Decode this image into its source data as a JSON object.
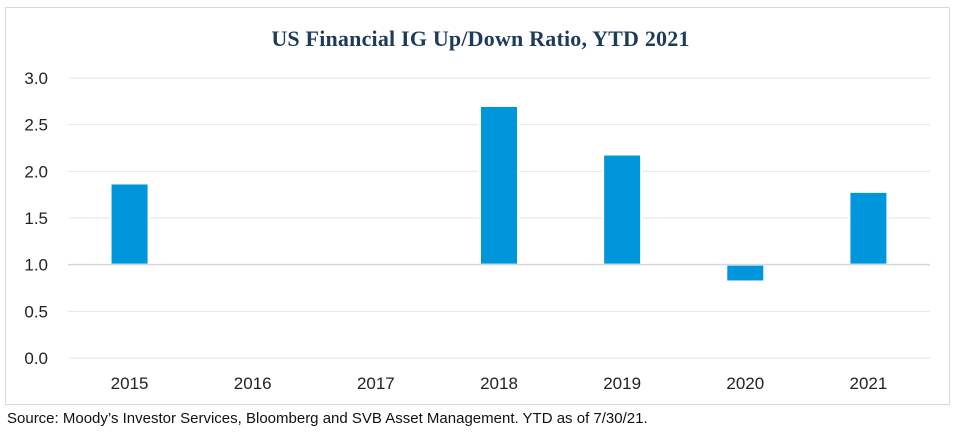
{
  "chart_data": {
    "type": "bar",
    "title": "US Financial IG Up/Down Ratio, YTD 2021",
    "categories": [
      "2015",
      "2016",
      "2017",
      "2018",
      "2019",
      "2020",
      "2021"
    ],
    "values": [
      1.87,
      1.02,
      0.99,
      2.7,
      2.18,
      0.82,
      1.78
    ],
    "baseline": 1.0,
    "ylim": [
      0,
      3
    ],
    "yticks": [
      "0.0",
      "0.5",
      "1.0",
      "1.5",
      "2.0",
      "2.5",
      "3.0"
    ],
    "ytick_values": [
      0,
      0.5,
      1.0,
      1.5,
      2.0,
      2.5,
      3.0
    ],
    "xlabel": "",
    "ylabel": "",
    "grid": true,
    "legend": "none",
    "colors": {
      "bar": "#0096dc",
      "near_baseline_bar": "#d9d9d9",
      "bar_outline": "#ffffff",
      "grid": "#e6e6e6",
      "baseline": "#d9d9d9",
      "title": "#1f3b5c"
    }
  },
  "footer": {
    "source": "Source: Moody’s Investor Services, Bloomberg and SVB Asset Management. YTD as of 7/30/21."
  }
}
